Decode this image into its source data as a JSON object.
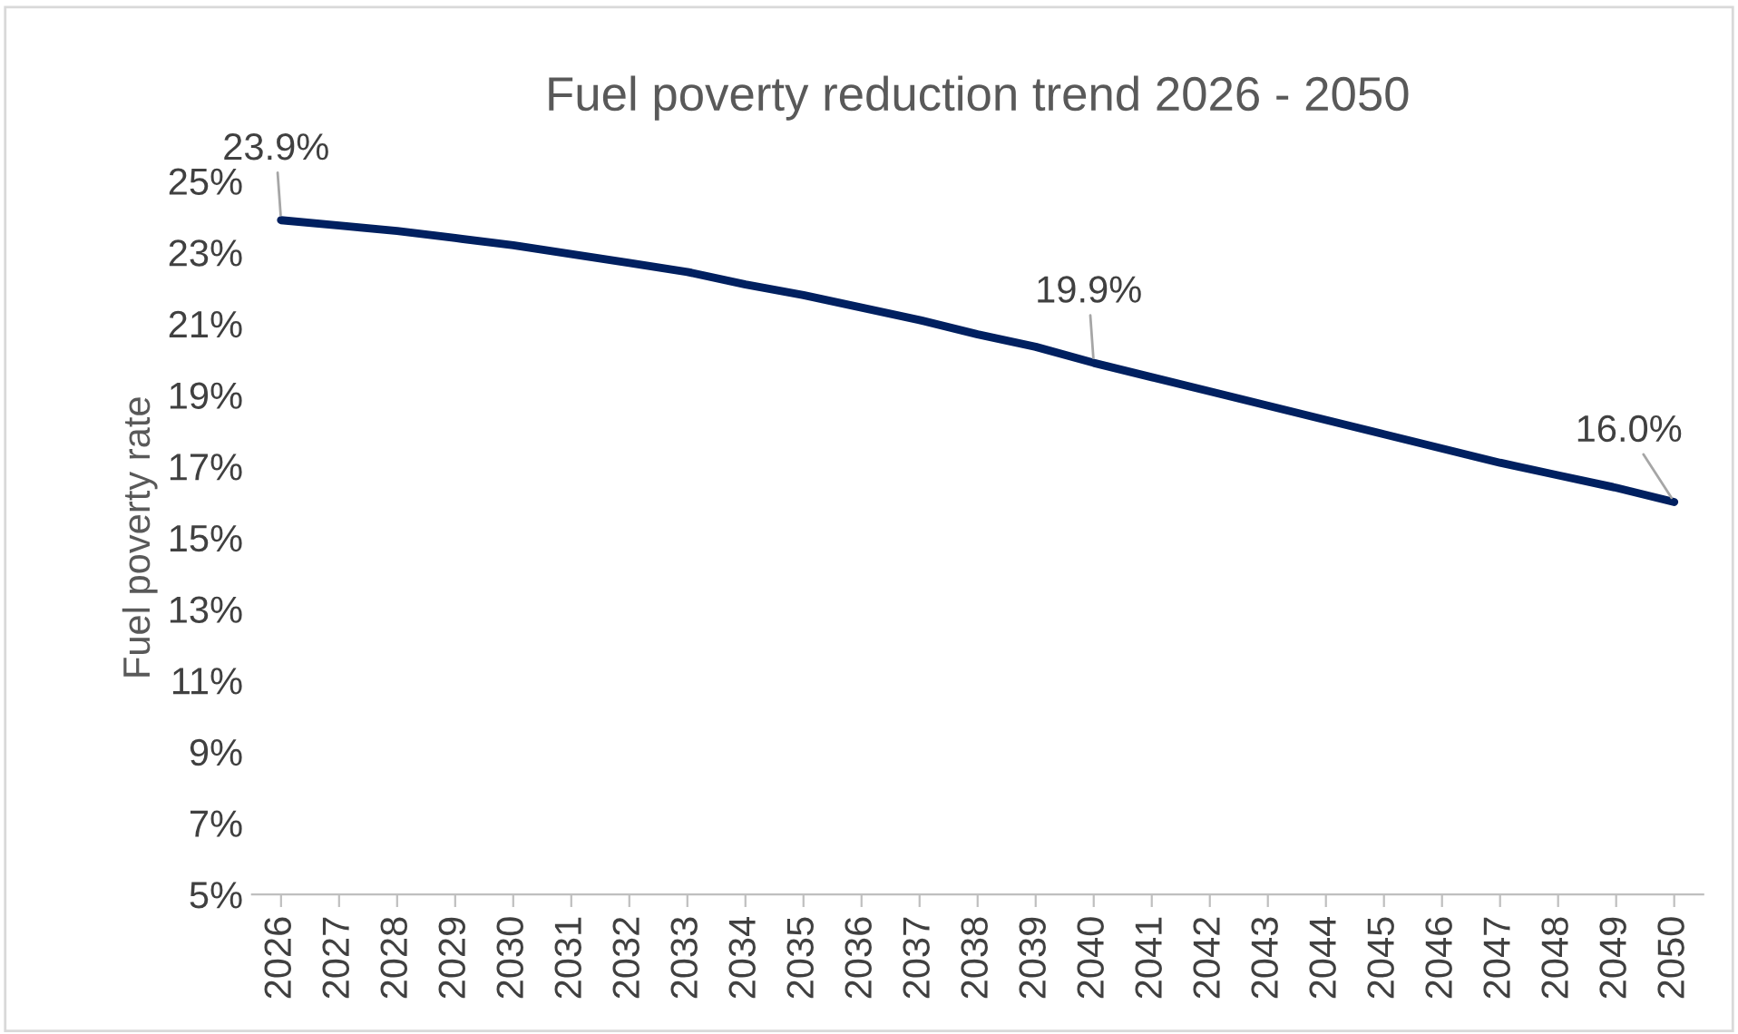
{
  "chart_data": {
    "type": "line",
    "title": "Fuel poverty reduction trend 2026 - 2050",
    "ylabel": "Fuel poverty rate",
    "categories": [
      "2026",
      "2027",
      "2028",
      "2029",
      "2030",
      "2031",
      "2032",
      "2033",
      "2034",
      "2035",
      "2036",
      "2037",
      "2038",
      "2039",
      "2040",
      "2041",
      "2042",
      "2043",
      "2044",
      "2045",
      "2046",
      "2047",
      "2048",
      "2049",
      "2050"
    ],
    "series": [
      {
        "color": "#002060",
        "values": [
          23.9,
          23.75,
          23.6,
          23.4,
          23.2,
          22.95,
          22.7,
          22.45,
          22.1,
          21.8,
          21.45,
          21.1,
          20.7,
          20.35,
          19.9,
          19.5,
          19.1,
          18.7,
          18.3,
          17.9,
          17.5,
          17.1,
          16.75,
          16.4,
          16.0
        ],
        "value_labels": [
          "23.9%",
          null,
          null,
          null,
          null,
          null,
          null,
          null,
          null,
          null,
          null,
          null,
          null,
          null,
          "19.9%",
          null,
          null,
          null,
          null,
          null,
          null,
          null,
          null,
          null,
          "16.0%"
        ]
      }
    ],
    "ylim": [
      5,
      25
    ],
    "yticks": [
      {
        "value": 5,
        "label": "5%"
      },
      {
        "value": 7,
        "label": "7%"
      },
      {
        "value": 9,
        "label": "9%"
      },
      {
        "value": 11,
        "label": "11%"
      },
      {
        "value": 13,
        "label": "13%"
      },
      {
        "value": 15,
        "label": "15%"
      },
      {
        "value": 17,
        "label": "17%"
      },
      {
        "value": 19,
        "label": "19%"
      },
      {
        "value": 21,
        "label": "21%"
      },
      {
        "value": 23,
        "label": "23%"
      },
      {
        "value": 25,
        "label": "25%"
      }
    ],
    "grid": false,
    "marker": "none",
    "line_style": "solid"
  }
}
